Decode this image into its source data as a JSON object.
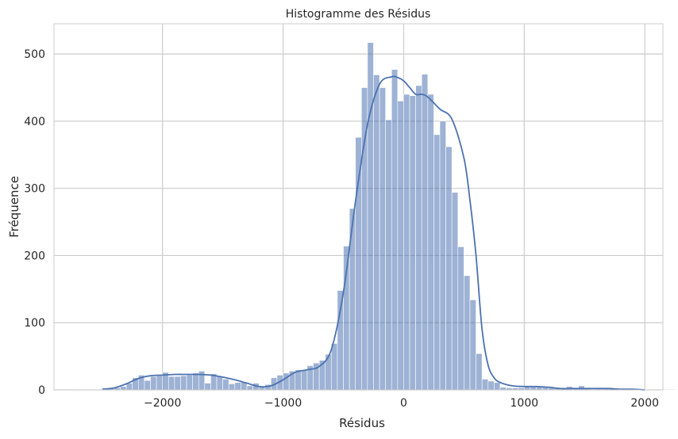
{
  "chart_data": {
    "type": "bar",
    "title": "Histogramme des Résidus",
    "xlabel": "Résidus",
    "ylabel": "Fréquence",
    "xlim": [
      -2900,
      2150
    ],
    "ylim": [
      0,
      545
    ],
    "xticks": [
      -2000,
      -1000,
      0,
      1000,
      2000
    ],
    "xtick_labels": [
      "−2000",
      "−1000",
      "0",
      "1000",
      "2000"
    ],
    "yticks": [
      0,
      100,
      200,
      300,
      400,
      500
    ],
    "ytick_labels": [
      "0",
      "100",
      "200",
      "300",
      "400",
      "500"
    ],
    "grid": true,
    "bin_start": -2700,
    "bin_width": 50,
    "counts": [
      1,
      1,
      1,
      1,
      2,
      2,
      3,
      5,
      10,
      18,
      22,
      14,
      20,
      21,
      26,
      20,
      20,
      21,
      22,
      25,
      28,
      10,
      24,
      20,
      16,
      9,
      11,
      12,
      6,
      10,
      5,
      8,
      18,
      22,
      25,
      28,
      30,
      29,
      36,
      40,
      44,
      53,
      69,
      148,
      214,
      270,
      376,
      450,
      517,
      469,
      450,
      402,
      477,
      430,
      440,
      438,
      453,
      470,
      440,
      380,
      400,
      362,
      294,
      213,
      170,
      134,
      54,
      16,
      13,
      11,
      4,
      3,
      3,
      3,
      5,
      5,
      5,
      5,
      3,
      3,
      3,
      5,
      3,
      6,
      3,
      1,
      2,
      2,
      2,
      1,
      1,
      2,
      2,
      1,
      1,
      1,
      1,
      1,
      1
    ],
    "kde": {
      "x": [
        -2500,
        -2400,
        -2300,
        -2200,
        -2100,
        -2000,
        -1900,
        -1800,
        -1700,
        -1600,
        -1500,
        -1400,
        -1300,
        -1200,
        -1100,
        -1000,
        -900,
        -800,
        -700,
        -600,
        -500,
        -400,
        -300,
        -200,
        -100,
        -50,
        0,
        50,
        100,
        150,
        200,
        300,
        400,
        500,
        550,
        600,
        650,
        700,
        750,
        800,
        900,
        1000,
        1100,
        1200,
        1300,
        1400,
        1500,
        1600,
        1700,
        1800,
        1900,
        2000
      ],
      "y": [
        1,
        3,
        9,
        17,
        21,
        22,
        23,
        23,
        23,
        22,
        19,
        15,
        10,
        5,
        6,
        15,
        26,
        30,
        35,
        60,
        145,
        280,
        395,
        455,
        466,
        465,
        460,
        450,
        440,
        440,
        436,
        418,
        403,
        345,
        282,
        200,
        90,
        37,
        18,
        11,
        6,
        5,
        5,
        4,
        2,
        2,
        2,
        2,
        2,
        1,
        1,
        0
      ]
    },
    "colors": {
      "bar_fill": "#4c72b0",
      "bar_fill_opacity": 0.55,
      "bar_edge": "#ffffff",
      "kde_line": "#4c72b0",
      "grid": "#cccccc",
      "axes_edge": "#cccccc"
    }
  }
}
